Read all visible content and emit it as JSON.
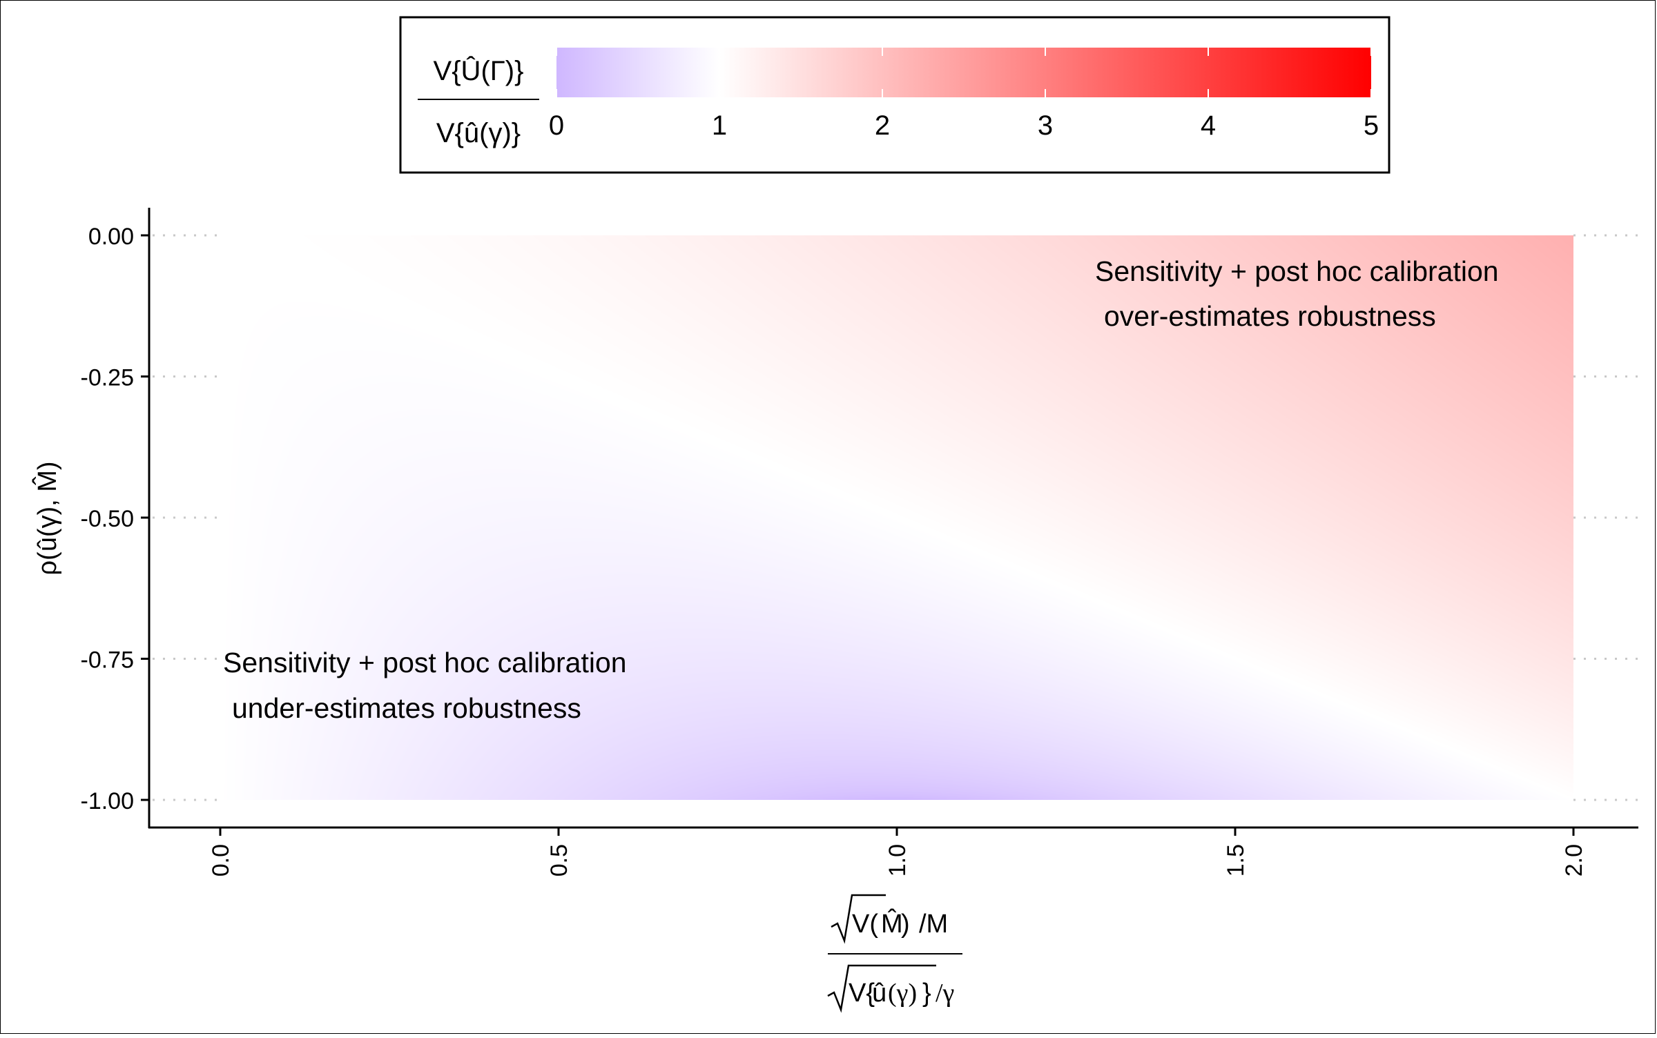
{
  "chart_data": {
    "type": "heatmap",
    "title": "",
    "x": {
      "min": 0,
      "max": 2,
      "ticks": [
        0.0,
        0.5,
        1.0,
        1.5,
        2.0
      ],
      "tick_labels": [
        "0.0",
        "0.5",
        "1.0",
        "1.5",
        "2.0"
      ],
      "label": {
        "numerator_prefix": "V(",
        "numerator_var": "M̂",
        "numerator_suffix": ")",
        "numerator_tail": "/M",
        "denominator_prefix": "V{",
        "denominator_var": "û",
        "denominator_arg": "(γ)",
        "denominator_suffix": "}",
        "denominator_tail": "/γ"
      }
    },
    "y": {
      "min": -1,
      "max": 0,
      "ticks": [
        0.0,
        -0.25,
        -0.5,
        -0.75,
        -1.0
      ],
      "tick_labels": [
        "0.00",
        "-0.25",
        "-0.50",
        "-0.75",
        "-1.00"
      ],
      "label": "ρ(û(γ), M̂)"
    },
    "z_formula": "sqrt(1 + x^2 + 2*rho*x)",
    "colorbar": {
      "title_numerator": "V{Û(Γ)}",
      "title_denominator": "V{û(γ)}",
      "min": 0,
      "max": 5,
      "midpoint": 1,
      "ticks": [
        0,
        1,
        2,
        3,
        4,
        5
      ],
      "tick_labels": [
        "0",
        "1",
        "2",
        "3",
        "4",
        "5"
      ],
      "low_color": "#cfb7ff",
      "mid_color": "#ffffff",
      "high_color": "#ff0000",
      "position": "top"
    },
    "annotations": [
      {
        "line1": "Sensitivity + post hoc calibration",
        "line2": "over-estimates robustness",
        "placement": "top-right"
      },
      {
        "line1": "Sensitivity + post hoc calibration",
        "line2": "under-estimates robustness",
        "placement": "bottom-left"
      }
    ]
  }
}
